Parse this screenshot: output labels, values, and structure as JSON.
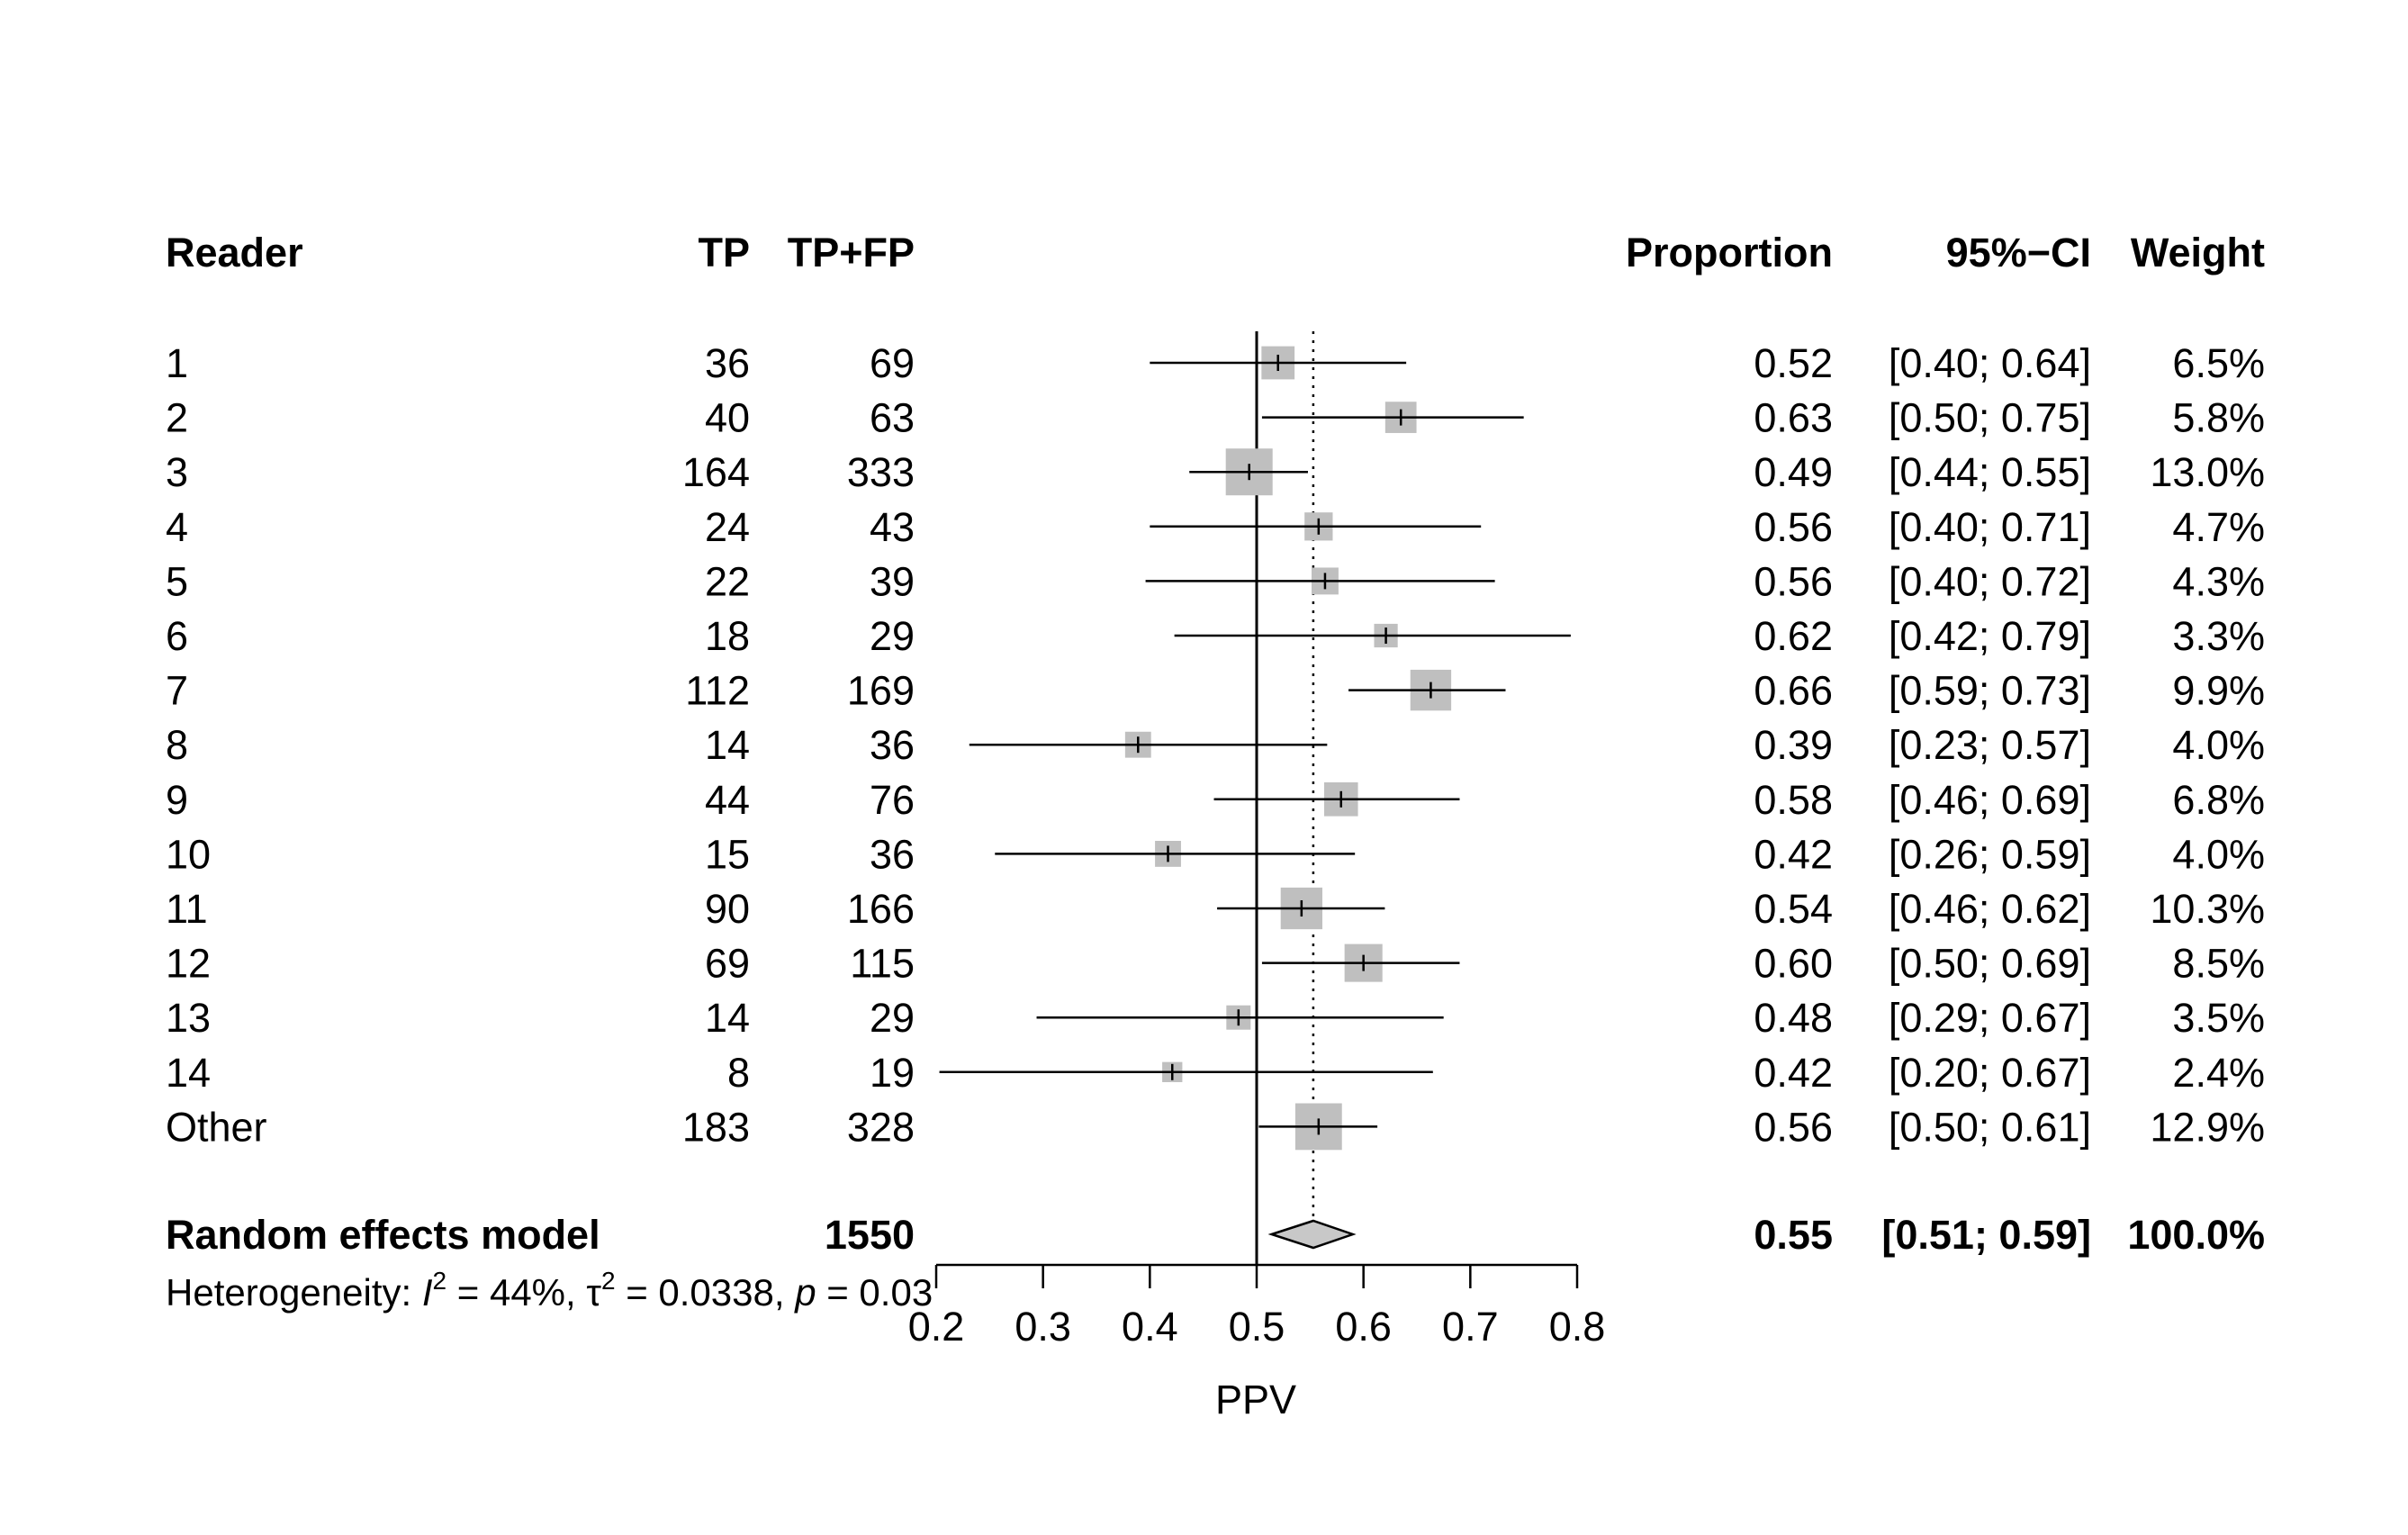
{
  "chart_data": {
    "type": "forest",
    "columns": {
      "reader": "Reader",
      "tp": "TP",
      "tpfp": "TP+FP",
      "proportion": "Proportion",
      "ci": "95%−CI",
      "weight": "Weight"
    },
    "studies": [
      {
        "reader": "1",
        "tp": "36",
        "tpfp": "69",
        "proportion": "0.52",
        "ci": "[0.40; 0.64]",
        "weight": "6.5%",
        "est": 0.52,
        "lo": 0.4,
        "hi": 0.64,
        "w": 6.5
      },
      {
        "reader": "2",
        "tp": "40",
        "tpfp": "63",
        "proportion": "0.63",
        "ci": "[0.50; 0.75]",
        "weight": "5.8%",
        "est": 0.635,
        "lo": 0.505,
        "hi": 0.75,
        "w": 5.8
      },
      {
        "reader": "3",
        "tp": "164",
        "tpfp": "333",
        "proportion": "0.49",
        "ci": "[0.44; 0.55]",
        "weight": "13.0%",
        "est": 0.493,
        "lo": 0.437,
        "hi": 0.548,
        "w": 13.0
      },
      {
        "reader": "4",
        "tp": "24",
        "tpfp": "43",
        "proportion": "0.56",
        "ci": "[0.40; 0.71]",
        "weight": "4.7%",
        "est": 0.558,
        "lo": 0.4,
        "hi": 0.71,
        "w": 4.7
      },
      {
        "reader": "5",
        "tp": "22",
        "tpfp": "39",
        "proportion": "0.56",
        "ci": "[0.40; 0.72]",
        "weight": "4.3%",
        "est": 0.564,
        "lo": 0.396,
        "hi": 0.723,
        "w": 4.3
      },
      {
        "reader": "6",
        "tp": "18",
        "tpfp": "29",
        "proportion": "0.62",
        "ci": "[0.42; 0.79]",
        "weight": "3.3%",
        "est": 0.621,
        "lo": 0.423,
        "hi": 0.794,
        "w": 3.3
      },
      {
        "reader": "7",
        "tp": "112",
        "tpfp": "169",
        "proportion": "0.66",
        "ci": "[0.59; 0.73]",
        "weight": "9.9%",
        "est": 0.663,
        "lo": 0.586,
        "hi": 0.733,
        "w": 9.9
      },
      {
        "reader": "8",
        "tp": "14",
        "tpfp": "36",
        "proportion": "0.39",
        "ci": "[0.23; 0.57]",
        "weight": "4.0%",
        "est": 0.389,
        "lo": 0.231,
        "hi": 0.566,
        "w": 4.0
      },
      {
        "reader": "9",
        "tp": "44",
        "tpfp": "76",
        "proportion": "0.58",
        "ci": "[0.46; 0.69]",
        "weight": "6.8%",
        "est": 0.579,
        "lo": 0.46,
        "hi": 0.69,
        "w": 6.8
      },
      {
        "reader": "10",
        "tp": "15",
        "tpfp": "36",
        "proportion": "0.42",
        "ci": "[0.26; 0.59]",
        "weight": "4.0%",
        "est": 0.417,
        "lo": 0.255,
        "hi": 0.592,
        "w": 4.0
      },
      {
        "reader": "11",
        "tp": "90",
        "tpfp": "166",
        "proportion": "0.54",
        "ci": "[0.46; 0.62]",
        "weight": "10.3%",
        "est": 0.542,
        "lo": 0.463,
        "hi": 0.62,
        "w": 10.3
      },
      {
        "reader": "12",
        "tp": "69",
        "tpfp": "115",
        "proportion": "0.60",
        "ci": "[0.50; 0.69]",
        "weight": "8.5%",
        "est": 0.6,
        "lo": 0.505,
        "hi": 0.69,
        "w": 8.5
      },
      {
        "reader": "13",
        "tp": "14",
        "tpfp": "29",
        "proportion": "0.48",
        "ci": "[0.29; 0.67]",
        "weight": "3.5%",
        "est": 0.483,
        "lo": 0.294,
        "hi": 0.675,
        "w": 3.5
      },
      {
        "reader": "14",
        "tp": "8",
        "tpfp": "19",
        "proportion": "0.42",
        "ci": "[0.20; 0.67]",
        "weight": "2.4%",
        "est": 0.421,
        "lo": 0.203,
        "hi": 0.665,
        "w": 2.4
      },
      {
        "reader": "Other",
        "tp": "183",
        "tpfp": "328",
        "proportion": "0.56",
        "ci": "[0.50; 0.61]",
        "weight": "12.9%",
        "est": 0.558,
        "lo": 0.502,
        "hi": 0.613,
        "w": 12.9
      }
    ],
    "pooled": {
      "label": "Random effects model",
      "tpfp": "1550",
      "proportion": "0.55",
      "ci": "[0.51; 0.59]",
      "weight": "100.0%",
      "est": 0.553,
      "lo": 0.514,
      "hi": 0.59
    },
    "heterogeneity": {
      "prefix": "Heterogeneity: ",
      "i2_symbol": "I",
      "i2_sup": "2",
      "i2_value": " = 44%, ",
      "tau2_symbol": "τ",
      "tau2_sup": "2",
      "tau2_value": " = 0.0338, ",
      "p_symbol": "p",
      "p_value": " = 0.03"
    },
    "xaxis": {
      "label": "PPV",
      "range": [
        0.2,
        0.8
      ],
      "ticks": [
        0.2,
        0.3,
        0.4,
        0.5,
        0.6,
        0.7,
        0.8
      ],
      "tick_labels": [
        "0.2",
        "0.3",
        "0.4",
        "0.5",
        "0.6",
        "0.7",
        "0.8"
      ]
    },
    "reference_line": 0.5,
    "pooled_line": 0.553,
    "colors": {
      "box": "#bfbfbf",
      "line": "#000000",
      "diamond_fill": "#c8c8c8",
      "diamond_stroke": "#000000"
    }
  }
}
